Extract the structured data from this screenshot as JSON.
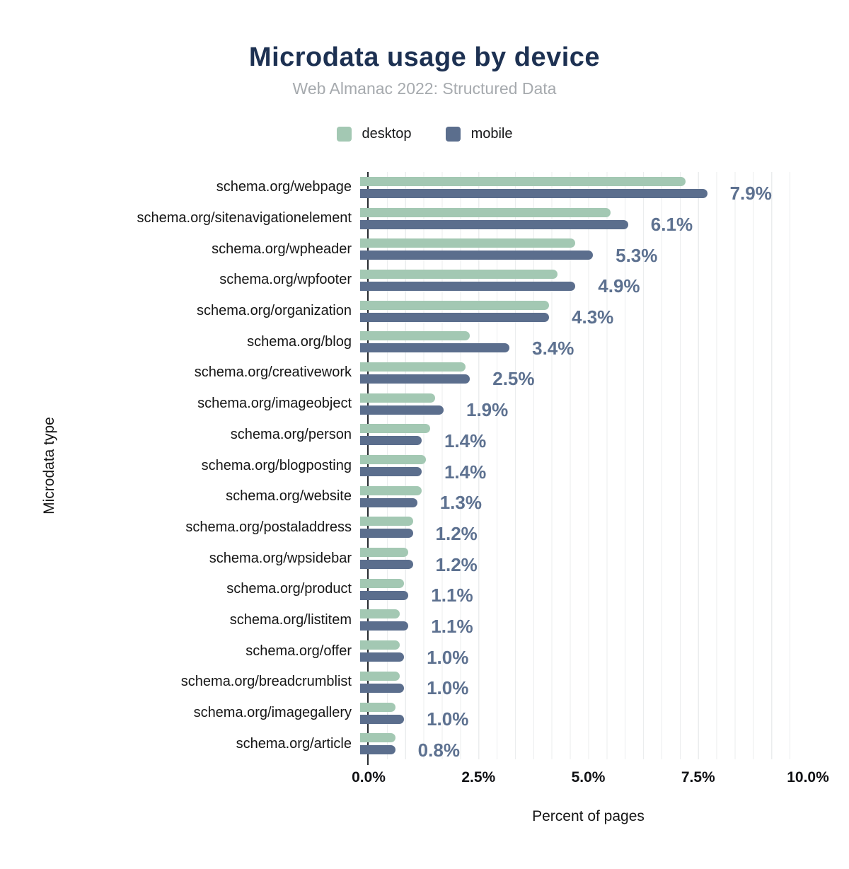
{
  "title": "Microdata usage by device",
  "subtitle": "Web Almanac 2022: Structured Data",
  "colors": {
    "desktop": "#a3c8b3",
    "mobile": "#5b6e8d",
    "value_label": "#5d7190",
    "title": "#1d3152",
    "subtitle": "#a6aaae",
    "gridline": "#ebedee",
    "axis_line": "#2a2e33"
  },
  "chart_data": {
    "type": "bar",
    "orientation": "horizontal",
    "title": "Microdata usage by device",
    "subtitle": "Web Almanac 2022: Structured Data",
    "xlabel": "Percent of pages",
    "ylabel": "Microdata type",
    "xlim": [
      0,
      10
    ],
    "xticks": [
      {
        "label": "0.0%",
        "value": 0
      },
      {
        "label": "2.5%",
        "value": 2.5
      },
      {
        "label": "5.0%",
        "value": 5
      },
      {
        "label": "7.5%",
        "value": 7.5
      },
      {
        "label": "10.0%",
        "value": 10
      }
    ],
    "grid": "vertical-minor",
    "legend_position": "top",
    "categories": [
      "schema.org/webpage",
      "schema.org/sitenavigationelement",
      "schema.org/wpheader",
      "schema.org/wpfooter",
      "schema.org/organization",
      "schema.org/blog",
      "schema.org/creativework",
      "schema.org/imageobject",
      "schema.org/person",
      "schema.org/blogposting",
      "schema.org/website",
      "schema.org/postaladdress",
      "schema.org/wpsidebar",
      "schema.org/product",
      "schema.org/listitem",
      "schema.org/offer",
      "schema.org/breadcrumblist",
      "schema.org/imagegallery",
      "schema.org/article"
    ],
    "series": [
      {
        "name": "desktop",
        "color": "#a3c8b3",
        "values": [
          7.4,
          5.7,
          4.9,
          4.5,
          4.3,
          2.5,
          2.4,
          1.7,
          1.6,
          1.5,
          1.4,
          1.2,
          1.1,
          1.0,
          0.9,
          0.9,
          0.9,
          0.8,
          0.8
        ]
      },
      {
        "name": "mobile",
        "color": "#5b6e8d",
        "values": [
          7.9,
          6.1,
          5.3,
          4.9,
          4.3,
          3.4,
          2.5,
          1.9,
          1.4,
          1.4,
          1.3,
          1.2,
          1.2,
          1.1,
          1.1,
          1.0,
          1.0,
          1.0,
          0.8
        ]
      }
    ],
    "value_labels": [
      "7.9%",
      "6.1%",
      "5.3%",
      "4.9%",
      "4.3%",
      "3.4%",
      "2.5%",
      "1.9%",
      "1.4%",
      "1.4%",
      "1.3%",
      "1.2%",
      "1.2%",
      "1.1%",
      "1.1%",
      "1.0%",
      "1.0%",
      "1.0%",
      "0.8%"
    ]
  }
}
